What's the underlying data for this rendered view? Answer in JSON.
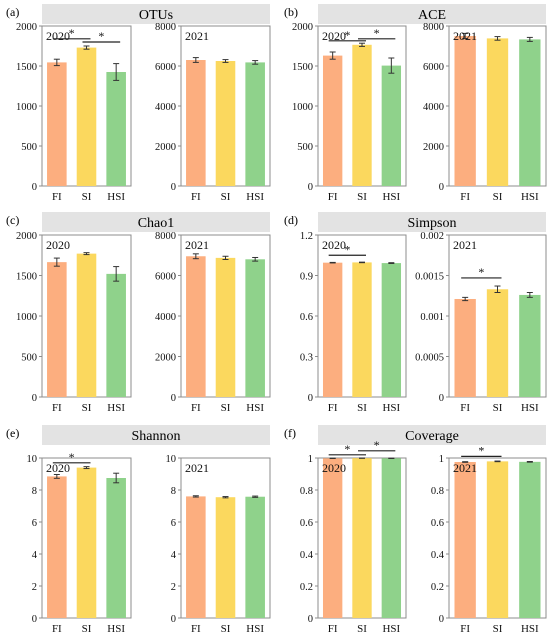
{
  "colors": {
    "FI": "#fcae7f",
    "SI": "#fbd85e",
    "HSI": "#8fd28b",
    "header_bg": "#e3e3e3",
    "axis": "#8c8c8c",
    "text": "#111111"
  },
  "chart_data": [
    {
      "panel_letter": "(a)",
      "title": "OTUs",
      "subplots": [
        {
          "type": "bar",
          "year_label": "2020",
          "categories": [
            "FI",
            "SI",
            "HSI"
          ],
          "values": [
            1545,
            1730,
            1425
          ],
          "errors": [
            40,
            20,
            105
          ],
          "ylim": [
            0,
            2000
          ],
          "yticks": [
            "0",
            "500",
            "1000",
            "1500",
            "2000"
          ],
          "significance": [
            {
              "from": 0,
              "to": 1,
              "y": 1840,
              "label": "*"
            },
            {
              "from": 1,
              "to": 2,
              "y": 1800,
              "label": "*"
            }
          ]
        },
        {
          "type": "bar",
          "year_label": "2021",
          "categories": [
            "FI",
            "SI",
            "HSI"
          ],
          "values": [
            6300,
            6250,
            6180
          ],
          "errors": [
            120,
            70,
            90
          ],
          "ylim": [
            0,
            8000
          ],
          "yticks": [
            "0",
            "2000",
            "4000",
            "6000",
            "8000"
          ],
          "significance": []
        }
      ]
    },
    {
      "panel_letter": "(b)",
      "title": "ACE",
      "subplots": [
        {
          "type": "bar",
          "year_label": "2020",
          "categories": [
            "FI",
            "SI",
            "HSI"
          ],
          "values": [
            1630,
            1765,
            1505
          ],
          "errors": [
            45,
            20,
            95
          ],
          "ylim": [
            0,
            2000
          ],
          "yticks": [
            "0",
            "500",
            "1000",
            "1500",
            "2000"
          ],
          "significance": [
            {
              "from": 0,
              "to": 1,
              "y": 1815,
              "label": "*"
            },
            {
              "from": 1,
              "to": 2,
              "y": 1840,
              "label": "*"
            }
          ]
        },
        {
          "type": "bar",
          "year_label": "2021",
          "categories": [
            "FI",
            "SI",
            "HSI"
          ],
          "values": [
            7500,
            7380,
            7330
          ],
          "errors": [
            130,
            90,
            100
          ],
          "ylim": [
            0,
            8000
          ],
          "yticks": [
            "0",
            "2000",
            "4000",
            "6000",
            "8000"
          ],
          "significance": []
        }
      ]
    },
    {
      "panel_letter": "(c)",
      "title": "Chao1",
      "subplots": [
        {
          "type": "bar",
          "year_label": "2020",
          "categories": [
            "FI",
            "SI",
            "HSI"
          ],
          "values": [
            1665,
            1770,
            1520
          ],
          "errors": [
            50,
            12,
            90
          ],
          "ylim": [
            0,
            2000
          ],
          "yticks": [
            "0",
            "500",
            "1000",
            "1500",
            "2000"
          ],
          "significance": []
        },
        {
          "type": "bar",
          "year_label": "2021",
          "categories": [
            "FI",
            "SI",
            "HSI"
          ],
          "values": [
            6950,
            6870,
            6800
          ],
          "errors": [
            120,
            80,
            90
          ],
          "ylim": [
            0,
            8000
          ],
          "yticks": [
            "0",
            "2000",
            "4000",
            "6000",
            "8000"
          ],
          "significance": []
        }
      ]
    },
    {
      "panel_letter": "(d)",
      "title": "Simpson",
      "subplots": [
        {
          "type": "bar",
          "year_label": "2020",
          "categories": [
            "FI",
            "SI",
            "HSI"
          ],
          "values": [
            0.995,
            0.997,
            0.992
          ],
          "errors": [
            0.002,
            0.002,
            0.003
          ],
          "ylim": [
            0,
            1.2
          ],
          "yticks": [
            "0",
            "0.3",
            "0.6",
            "0.9",
            "1.2"
          ],
          "significance": [
            {
              "from": 0,
              "to": 1,
              "y": 1.05,
              "label": "*"
            }
          ]
        },
        {
          "type": "bar",
          "year_label": "2021",
          "categories": [
            "FI",
            "SI",
            "HSI"
          ],
          "values": [
            0.00121,
            0.00133,
            0.00126
          ],
          "errors": [
            2e-05,
            4e-05,
            3e-05
          ],
          "ylim": [
            0,
            0.002
          ],
          "yticks": [
            "0",
            "0.0005",
            "0.001",
            "0.0015",
            "0.002"
          ],
          "significance": [
            {
              "from": 0,
              "to": 1,
              "y": 0.00147,
              "label": "*"
            }
          ]
        }
      ]
    },
    {
      "panel_letter": "(e)",
      "title": "Shannon",
      "subplots": [
        {
          "type": "bar",
          "year_label": "2020",
          "categories": [
            "FI",
            "SI",
            "HSI"
          ],
          "values": [
            8.85,
            9.4,
            8.75
          ],
          "errors": [
            0.12,
            0.06,
            0.3
          ],
          "ylim": [
            0,
            10
          ],
          "yticks": [
            "0",
            "2",
            "4",
            "6",
            "8",
            "10"
          ],
          "significance": [
            {
              "from": 0,
              "to": 1,
              "y": 9.7,
              "label": "*"
            }
          ]
        },
        {
          "type": "bar",
          "year_label": "2021",
          "categories": [
            "FI",
            "SI",
            "HSI"
          ],
          "values": [
            7.6,
            7.55,
            7.58
          ],
          "errors": [
            0.04,
            0.04,
            0.04
          ],
          "ylim": [
            0,
            10
          ],
          "yticks": [
            "0",
            "2",
            "4",
            "6",
            "8",
            "10"
          ],
          "significance": []
        }
      ]
    },
    {
      "panel_letter": "(f)",
      "title": "Coverage",
      "subplots": [
        {
          "type": "bar",
          "year_label": "2020",
          "categories": [
            "FI",
            "SI",
            "HSI"
          ],
          "values": [
            0.998,
            0.999,
            0.998
          ],
          "errors": [
            0.001,
            0.001,
            0.001
          ],
          "ylim": [
            0,
            1
          ],
          "yticks": [
            "0",
            "0.2",
            "0.4",
            "0.6",
            "0.8",
            "1"
          ],
          "significance": [
            {
              "from": 0,
              "to": 1,
              "y": 1.02,
              "label": "*"
            },
            {
              "from": 1,
              "to": 2,
              "y": 1.045,
              "label": "*"
            }
          ]
        },
        {
          "type": "bar",
          "year_label": "2021",
          "categories": [
            "FI",
            "SI",
            "HSI"
          ],
          "values": [
            0.975,
            0.979,
            0.976
          ],
          "errors": [
            0.002,
            0.002,
            0.002
          ],
          "ylim": [
            0,
            1
          ],
          "yticks": [
            "0",
            "0.2",
            "0.4",
            "0.6",
            "0.8",
            "1"
          ],
          "significance": [
            {
              "from": 0,
              "to": 1,
              "y": 1.01,
              "label": "*"
            }
          ]
        }
      ]
    }
  ]
}
